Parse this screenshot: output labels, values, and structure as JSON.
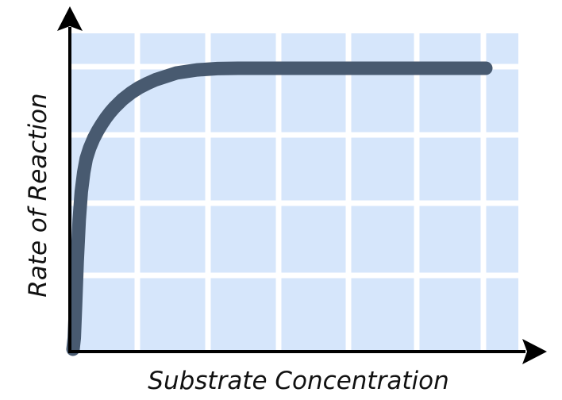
{
  "chart_data": {
    "type": "line",
    "title": "",
    "xlabel": "Substrate Concentration",
    "ylabel": "Rate of Reaction",
    "grid": true,
    "colors": {
      "background": "#d6e6fb",
      "grid": "#ffffff",
      "line": "#485a70",
      "axis": "#000000"
    },
    "series": [
      {
        "name": "",
        "x": [
          0,
          0.3,
          0.6,
          1.0,
          1.5,
          2.0,
          2.6,
          3.2,
          4.0,
          5.0,
          6.0,
          7.0,
          8.0,
          9.0,
          10.0,
          12.0,
          14.0,
          16.0,
          18.0,
          20.0,
          25.0,
          30.0,
          35.0,
          40.0,
          45.0,
          50.0,
          55.0,
          60.0,
          65.0,
          70.0,
          75.0,
          80.0,
          85.0,
          90.0,
          95.0,
          100.0
        ],
        "values": [
          0,
          4,
          15,
          31,
          46,
          56,
          63,
          67.8,
          71.5,
          75,
          77.8,
          80.2,
          82.4,
          84.3,
          86,
          88.9,
          91.2,
          93.1,
          94.6,
          95.9,
          98.3,
          99.4,
          99.9,
          100,
          100,
          100,
          100,
          100,
          100,
          100,
          100,
          100,
          100,
          100,
          100,
          100
        ]
      }
    ],
    "xlim": [
      0,
      100
    ],
    "ylim": [
      0,
      100
    ]
  }
}
